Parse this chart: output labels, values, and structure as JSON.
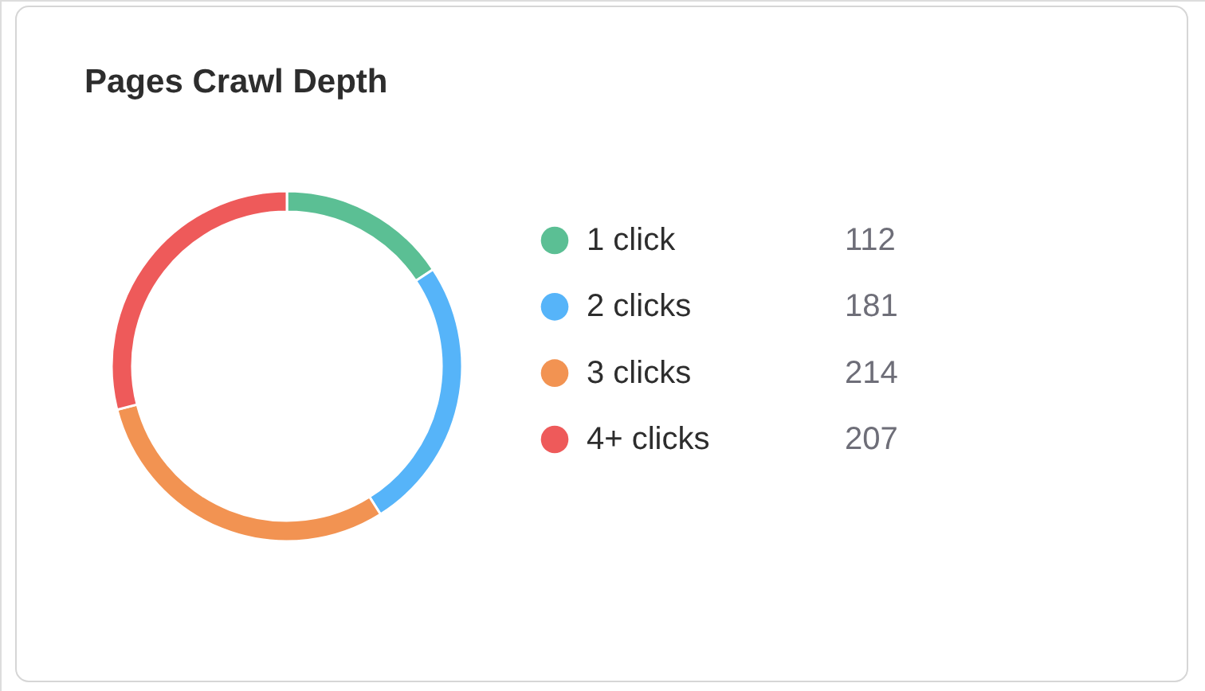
{
  "chart_data": {
    "type": "donut",
    "title": "Pages Crawl Depth",
    "categories": [
      "1 click",
      "2 clicks",
      "3 clicks",
      "4+ clicks"
    ],
    "values": [
      112,
      181,
      214,
      207
    ],
    "colors": [
      "#5bbf94",
      "#56b4f9",
      "#f29352",
      "#ee5a5a"
    ],
    "legend": "right",
    "data_labels": true
  }
}
